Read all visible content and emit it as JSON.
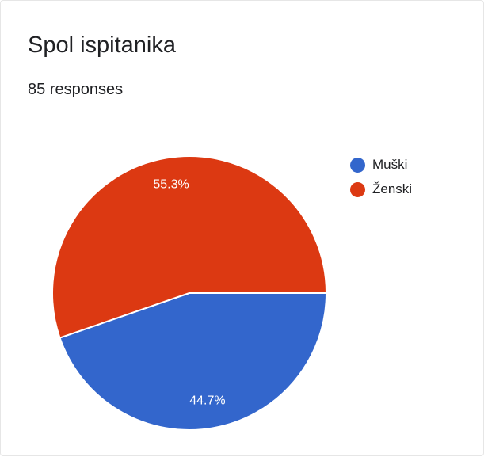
{
  "title": "Spol ispitanika",
  "subtitle": "85 responses",
  "chart_data": {
    "type": "pie",
    "title": "Spol ispitanika",
    "subtitle": "85 responses",
    "legend_position": "right",
    "slices": [
      {
        "label": "Muški",
        "value": 44.7,
        "value_label": "44.7%",
        "color": "#3366cc"
      },
      {
        "label": "Ženski",
        "value": 55.3,
        "value_label": "55.3%",
        "color": "#dc3912"
      }
    ]
  }
}
